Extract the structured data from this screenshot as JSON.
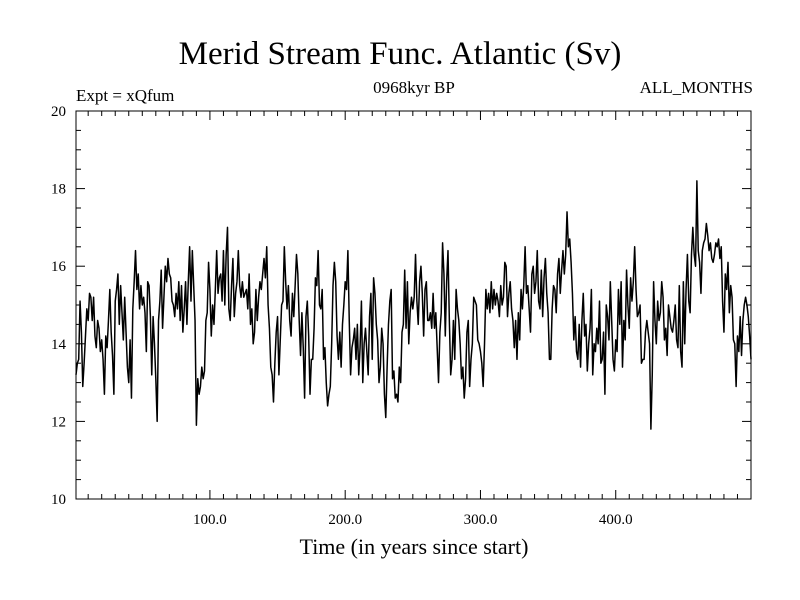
{
  "chart_data": {
    "type": "line",
    "title": "Merid Stream Func. Atlantic (Sv)",
    "experiment_label": "Expt = xQfum",
    "period_label": "0968kyr BP",
    "season_label": "ALL_MONTHS",
    "xlabel": "Time (in years since start)",
    "ylabel": "",
    "xlim": [
      1,
      500
    ],
    "ylim": [
      10,
      20
    ],
    "x_ticks": [
      100,
      200,
      300,
      400
    ],
    "x_tick_labels": [
      "100.0",
      "200.0",
      "300.0",
      "400.0"
    ],
    "y_ticks": [
      10,
      12,
      14,
      16,
      18,
      20
    ],
    "y_tick_labels": [
      "10",
      "12",
      "14",
      "16",
      "18",
      "20"
    ],
    "series": [
      {
        "name": "Merid Stream Func. Atlantic",
        "x_start": 1,
        "x_step": 1,
        "values": [
          13.2,
          13.5,
          13.6,
          15.1,
          14.3,
          12.9,
          13.5,
          14.2,
          14.9,
          14.6,
          15.3,
          15.2,
          14.6,
          15.2,
          14.2,
          13.9,
          14.6,
          14.4,
          13.8,
          14.1,
          13.6,
          12.7,
          14.2,
          13.9,
          14.6,
          15.4,
          14.3,
          13.7,
          12.7,
          15.1,
          15.4,
          15.8,
          14.5,
          15.5,
          14.8,
          14.1,
          15.2,
          14.3,
          13.4,
          13.0,
          14.1,
          12.6,
          14.9,
          15.6,
          16.4,
          15.4,
          15.8,
          14.9,
          15.5,
          15.0,
          15.2,
          14.8,
          13.8,
          15.6,
          15.5,
          14.7,
          13.2,
          14.7,
          14.0,
          13.1,
          12.0,
          14.6,
          15.1,
          15.9,
          14.4,
          15.2,
          16.0,
          15.6,
          16.2,
          15.8,
          15.7,
          15.1,
          15.0,
          14.7,
          15.3,
          14.9,
          15.6,
          14.6,
          15.5,
          14.3,
          14.9,
          15.6,
          14.5,
          15.6,
          16.5,
          15.1,
          16.4,
          15.5,
          14.6,
          11.9,
          13.1,
          12.7,
          12.9,
          13.4,
          13.1,
          13.3,
          14.6,
          14.8,
          16.1,
          15.4,
          14.2,
          15.0,
          14.5,
          15.4,
          16.4,
          15.3,
          15.7,
          15.8,
          15.1,
          16.4,
          15.0,
          16.3,
          17.0,
          14.9,
          14.6,
          15.5,
          16.2,
          14.7,
          15.3,
          15.6,
          16.4,
          15.5,
          15.2,
          15.6,
          15.2,
          15.3,
          15.4,
          14.9,
          15.8,
          14.5,
          14.9,
          14.0,
          14.3,
          15.4,
          14.6,
          15.2,
          15.6,
          15.4,
          15.8,
          16.2,
          15.7,
          16.5,
          15.0,
          14.4,
          13.4,
          13.2,
          12.5,
          13.5,
          14.3,
          14.7,
          13.2,
          14.1,
          15.0,
          15.1,
          16.5,
          15.6,
          14.9,
          15.5,
          14.6,
          14.2,
          15.3,
          14.7,
          15.5,
          16.3,
          15.8,
          14.6,
          13.7,
          14.8,
          13.9,
          12.6,
          14.7,
          15.1,
          14.2,
          12.7,
          13.6,
          13.6,
          14.4,
          15.7,
          15.5,
          16.4,
          15.0,
          14.9,
          15.4,
          13.6,
          13.9,
          13.0,
          12.4,
          12.7,
          12.9,
          14.0,
          15.5,
          16.1,
          15.6,
          14.2,
          13.6,
          14.3,
          13.4,
          14.5,
          15.0,
          15.6,
          15.4,
          16.4,
          14.6,
          13.2,
          13.9,
          14.1,
          14.4,
          13.6,
          14.5,
          13.2,
          13.9,
          15.1,
          13.0,
          14.0,
          14.4,
          13.8,
          13.2,
          14.7,
          15.3,
          13.6,
          15.7,
          15.3,
          14.5,
          14.1,
          13.0,
          13.4,
          14.4,
          14.0,
          12.7,
          12.1,
          13.4,
          14.5,
          15.1,
          15.4,
          13.1,
          13.3,
          12.6,
          12.7,
          12.5,
          13.4,
          13.0,
          14.3,
          14.5,
          15.9,
          14.4,
          15.6,
          14.0,
          14.8,
          15.2,
          14.9,
          15.2,
          16.3,
          15.1,
          14.5,
          15.6,
          16.0,
          15.3,
          14.2,
          15.4,
          15.6,
          14.6,
          14.6,
          14.8,
          14.4,
          15.3,
          14.4,
          14.8,
          13.9,
          13.0,
          14.3,
          14.8,
          16.6,
          15.8,
          14.2,
          15.6,
          16.4,
          14.6,
          13.2,
          13.6,
          14.6,
          13.6,
          15.4,
          14.9,
          14.6,
          14.0,
          13.1,
          13.4,
          12.6,
          13.1,
          14.3,
          14.6,
          12.9,
          13.6,
          14.0,
          15.2,
          15.1,
          15.0,
          14.1,
          14.0,
          13.8,
          13.5,
          12.9,
          14.0,
          15.4,
          14.9,
          15.3,
          14.8,
          15.6,
          14.9,
          15.4,
          15.0,
          15.3,
          15.1,
          14.7,
          15.5,
          15.0,
          15.2,
          16.1,
          16.0,
          14.7,
          15.3,
          15.6,
          14.9,
          14.6,
          13.9,
          14.6,
          13.6,
          14.8,
          14.1,
          15.4,
          14.9,
          15.5,
          16.5,
          15.3,
          15.5,
          14.9,
          14.3,
          15.8,
          16.0,
          15.3,
          15.6,
          16.4,
          15.1,
          14.9,
          15.9,
          14.7,
          15.7,
          16.2,
          15.3,
          14.8,
          13.6,
          13.6,
          14.9,
          15.5,
          15.4,
          14.8,
          15.8,
          16.2,
          15.3,
          15.9,
          16.4,
          15.8,
          16.3,
          17.4,
          16.5,
          16.7,
          16.1,
          15.3,
          14.1,
          14.7,
          13.8,
          13.6,
          14.5,
          13.4,
          14.6,
          15.3,
          14.2,
          14.5,
          13.3,
          14.0,
          14.4,
          15.4,
          13.2,
          14.0,
          13.8,
          14.4,
          14.0,
          15.1,
          13.5,
          13.6,
          14.3,
          12.7,
          15.0,
          14.7,
          14.1,
          15.6,
          14.6,
          13.6,
          13.3,
          14.1,
          13.8,
          15.4,
          14.5,
          15.6,
          13.4,
          14.6,
          14.1,
          15.9,
          15.0,
          14.4,
          15.7,
          15.1,
          15.6,
          16.5,
          15.4,
          14.7,
          14.8,
          15.0,
          13.5,
          13.6,
          13.6,
          14.3,
          14.6,
          14.3,
          14.0,
          11.8,
          13.2,
          15.6,
          14.6,
          14.0,
          15.1,
          14.6,
          14.8,
          15.6,
          15.2,
          14.1,
          14.4,
          13.7,
          15.0,
          14.7,
          14.4,
          14.3,
          14.6,
          15.0,
          14.1,
          13.9,
          15.5,
          13.8,
          13.4,
          15.6,
          14.0,
          15.4,
          16.3,
          15.1,
          14.8,
          16.3,
          17.0,
          16.3,
          16.0,
          18.2,
          16.4,
          16.1,
          15.3,
          16.4,
          16.6,
          16.7,
          17.1,
          16.8,
          16.4,
          16.6,
          16.2,
          16.1,
          16.3,
          16.6,
          16.5,
          16.7,
          16.2,
          16.5,
          15.1,
          14.3,
          15.8,
          15.4,
          16.1,
          14.8,
          15.5,
          15.2,
          14.1,
          14.0,
          12.9,
          14.2,
          13.8,
          14.7,
          13.7,
          14.6,
          15.0,
          15.2,
          15.0,
          14.7,
          14.2,
          13.6
        ]
      }
    ]
  }
}
